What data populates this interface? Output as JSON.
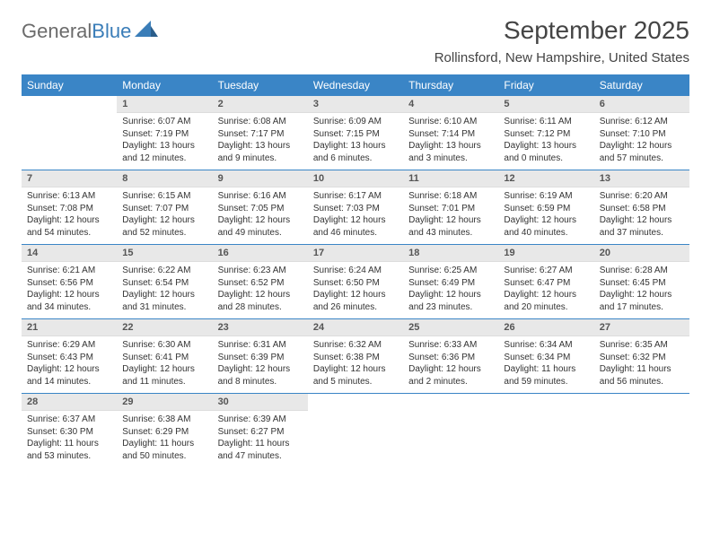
{
  "brand": {
    "part1": "General",
    "part2": "Blue"
  },
  "title": "September 2025",
  "location": "Rollinsford, New Hampshire, United States",
  "colors": {
    "header_bg": "#3a85c6",
    "daynum_bg": "#e8e8e8",
    "text": "#333333"
  },
  "weekdays": [
    "Sunday",
    "Monday",
    "Tuesday",
    "Wednesday",
    "Thursday",
    "Friday",
    "Saturday"
  ],
  "weeks": [
    [
      {
        "n": "",
        "sr": "",
        "ss": "",
        "dl": ""
      },
      {
        "n": "1",
        "sr": "Sunrise: 6:07 AM",
        "ss": "Sunset: 7:19 PM",
        "dl": "Daylight: 13 hours and 12 minutes."
      },
      {
        "n": "2",
        "sr": "Sunrise: 6:08 AM",
        "ss": "Sunset: 7:17 PM",
        "dl": "Daylight: 13 hours and 9 minutes."
      },
      {
        "n": "3",
        "sr": "Sunrise: 6:09 AM",
        "ss": "Sunset: 7:15 PM",
        "dl": "Daylight: 13 hours and 6 minutes."
      },
      {
        "n": "4",
        "sr": "Sunrise: 6:10 AM",
        "ss": "Sunset: 7:14 PM",
        "dl": "Daylight: 13 hours and 3 minutes."
      },
      {
        "n": "5",
        "sr": "Sunrise: 6:11 AM",
        "ss": "Sunset: 7:12 PM",
        "dl": "Daylight: 13 hours and 0 minutes."
      },
      {
        "n": "6",
        "sr": "Sunrise: 6:12 AM",
        "ss": "Sunset: 7:10 PM",
        "dl": "Daylight: 12 hours and 57 minutes."
      }
    ],
    [
      {
        "n": "7",
        "sr": "Sunrise: 6:13 AM",
        "ss": "Sunset: 7:08 PM",
        "dl": "Daylight: 12 hours and 54 minutes."
      },
      {
        "n": "8",
        "sr": "Sunrise: 6:15 AM",
        "ss": "Sunset: 7:07 PM",
        "dl": "Daylight: 12 hours and 52 minutes."
      },
      {
        "n": "9",
        "sr": "Sunrise: 6:16 AM",
        "ss": "Sunset: 7:05 PM",
        "dl": "Daylight: 12 hours and 49 minutes."
      },
      {
        "n": "10",
        "sr": "Sunrise: 6:17 AM",
        "ss": "Sunset: 7:03 PM",
        "dl": "Daylight: 12 hours and 46 minutes."
      },
      {
        "n": "11",
        "sr": "Sunrise: 6:18 AM",
        "ss": "Sunset: 7:01 PM",
        "dl": "Daylight: 12 hours and 43 minutes."
      },
      {
        "n": "12",
        "sr": "Sunrise: 6:19 AM",
        "ss": "Sunset: 6:59 PM",
        "dl": "Daylight: 12 hours and 40 minutes."
      },
      {
        "n": "13",
        "sr": "Sunrise: 6:20 AM",
        "ss": "Sunset: 6:58 PM",
        "dl": "Daylight: 12 hours and 37 minutes."
      }
    ],
    [
      {
        "n": "14",
        "sr": "Sunrise: 6:21 AM",
        "ss": "Sunset: 6:56 PM",
        "dl": "Daylight: 12 hours and 34 minutes."
      },
      {
        "n": "15",
        "sr": "Sunrise: 6:22 AM",
        "ss": "Sunset: 6:54 PM",
        "dl": "Daylight: 12 hours and 31 minutes."
      },
      {
        "n": "16",
        "sr": "Sunrise: 6:23 AM",
        "ss": "Sunset: 6:52 PM",
        "dl": "Daylight: 12 hours and 28 minutes."
      },
      {
        "n": "17",
        "sr": "Sunrise: 6:24 AM",
        "ss": "Sunset: 6:50 PM",
        "dl": "Daylight: 12 hours and 26 minutes."
      },
      {
        "n": "18",
        "sr": "Sunrise: 6:25 AM",
        "ss": "Sunset: 6:49 PM",
        "dl": "Daylight: 12 hours and 23 minutes."
      },
      {
        "n": "19",
        "sr": "Sunrise: 6:27 AM",
        "ss": "Sunset: 6:47 PM",
        "dl": "Daylight: 12 hours and 20 minutes."
      },
      {
        "n": "20",
        "sr": "Sunrise: 6:28 AM",
        "ss": "Sunset: 6:45 PM",
        "dl": "Daylight: 12 hours and 17 minutes."
      }
    ],
    [
      {
        "n": "21",
        "sr": "Sunrise: 6:29 AM",
        "ss": "Sunset: 6:43 PM",
        "dl": "Daylight: 12 hours and 14 minutes."
      },
      {
        "n": "22",
        "sr": "Sunrise: 6:30 AM",
        "ss": "Sunset: 6:41 PM",
        "dl": "Daylight: 12 hours and 11 minutes."
      },
      {
        "n": "23",
        "sr": "Sunrise: 6:31 AM",
        "ss": "Sunset: 6:39 PM",
        "dl": "Daylight: 12 hours and 8 minutes."
      },
      {
        "n": "24",
        "sr": "Sunrise: 6:32 AM",
        "ss": "Sunset: 6:38 PM",
        "dl": "Daylight: 12 hours and 5 minutes."
      },
      {
        "n": "25",
        "sr": "Sunrise: 6:33 AM",
        "ss": "Sunset: 6:36 PM",
        "dl": "Daylight: 12 hours and 2 minutes."
      },
      {
        "n": "26",
        "sr": "Sunrise: 6:34 AM",
        "ss": "Sunset: 6:34 PM",
        "dl": "Daylight: 11 hours and 59 minutes."
      },
      {
        "n": "27",
        "sr": "Sunrise: 6:35 AM",
        "ss": "Sunset: 6:32 PM",
        "dl": "Daylight: 11 hours and 56 minutes."
      }
    ],
    [
      {
        "n": "28",
        "sr": "Sunrise: 6:37 AM",
        "ss": "Sunset: 6:30 PM",
        "dl": "Daylight: 11 hours and 53 minutes."
      },
      {
        "n": "29",
        "sr": "Sunrise: 6:38 AM",
        "ss": "Sunset: 6:29 PM",
        "dl": "Daylight: 11 hours and 50 minutes."
      },
      {
        "n": "30",
        "sr": "Sunrise: 6:39 AM",
        "ss": "Sunset: 6:27 PM",
        "dl": "Daylight: 11 hours and 47 minutes."
      },
      {
        "n": "",
        "sr": "",
        "ss": "",
        "dl": ""
      },
      {
        "n": "",
        "sr": "",
        "ss": "",
        "dl": ""
      },
      {
        "n": "",
        "sr": "",
        "ss": "",
        "dl": ""
      },
      {
        "n": "",
        "sr": "",
        "ss": "",
        "dl": ""
      }
    ]
  ]
}
